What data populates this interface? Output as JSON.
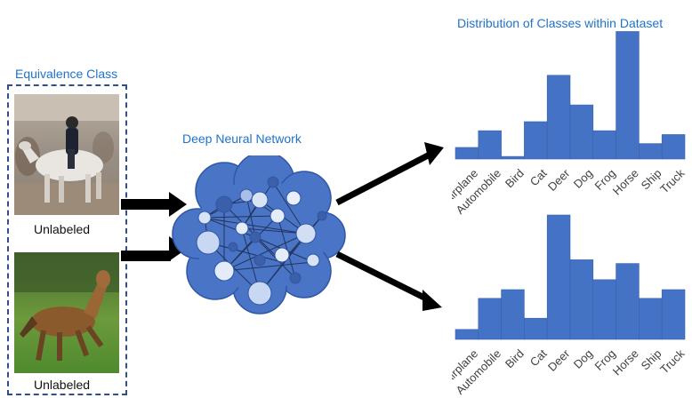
{
  "equivalence_title": "Equivalence Class",
  "images": [
    {
      "caption": "Unlabeled",
      "subject": "horse-and-rider"
    },
    {
      "caption": "Unlabeled",
      "subject": "brown-horse"
    }
  ],
  "network_title": "Deep Neural Network",
  "distribution_title": "Distribution of Classes within Dataset",
  "colors": {
    "accent": "#1f73c9",
    "bar": "#4472c4",
    "cloud": "#3f6cc4",
    "border": "#2f4f8f"
  },
  "chart_data": [
    {
      "type": "bar",
      "title": "Distribution of Classes within Dataset",
      "categories": [
        "Airplane",
        "Automobile",
        "Bird",
        "Cat",
        "Deer",
        "Dog",
        "Frog",
        "Horse",
        "Ship",
        "Truck"
      ],
      "values": [
        9,
        22,
        2,
        29,
        65,
        42,
        22,
        99,
        12,
        19
      ],
      "ylim": [
        0,
        100
      ]
    },
    {
      "type": "bar",
      "title": "",
      "categories": [
        "Airplane",
        "Automobile",
        "Bird",
        "Cat",
        "Deer",
        "Dog",
        "Frog",
        "Horse",
        "Ship",
        "Truck"
      ],
      "values": [
        8,
        33,
        40,
        17,
        100,
        64,
        48,
        61,
        33,
        40
      ],
      "ylim": [
        0,
        100
      ]
    }
  ]
}
